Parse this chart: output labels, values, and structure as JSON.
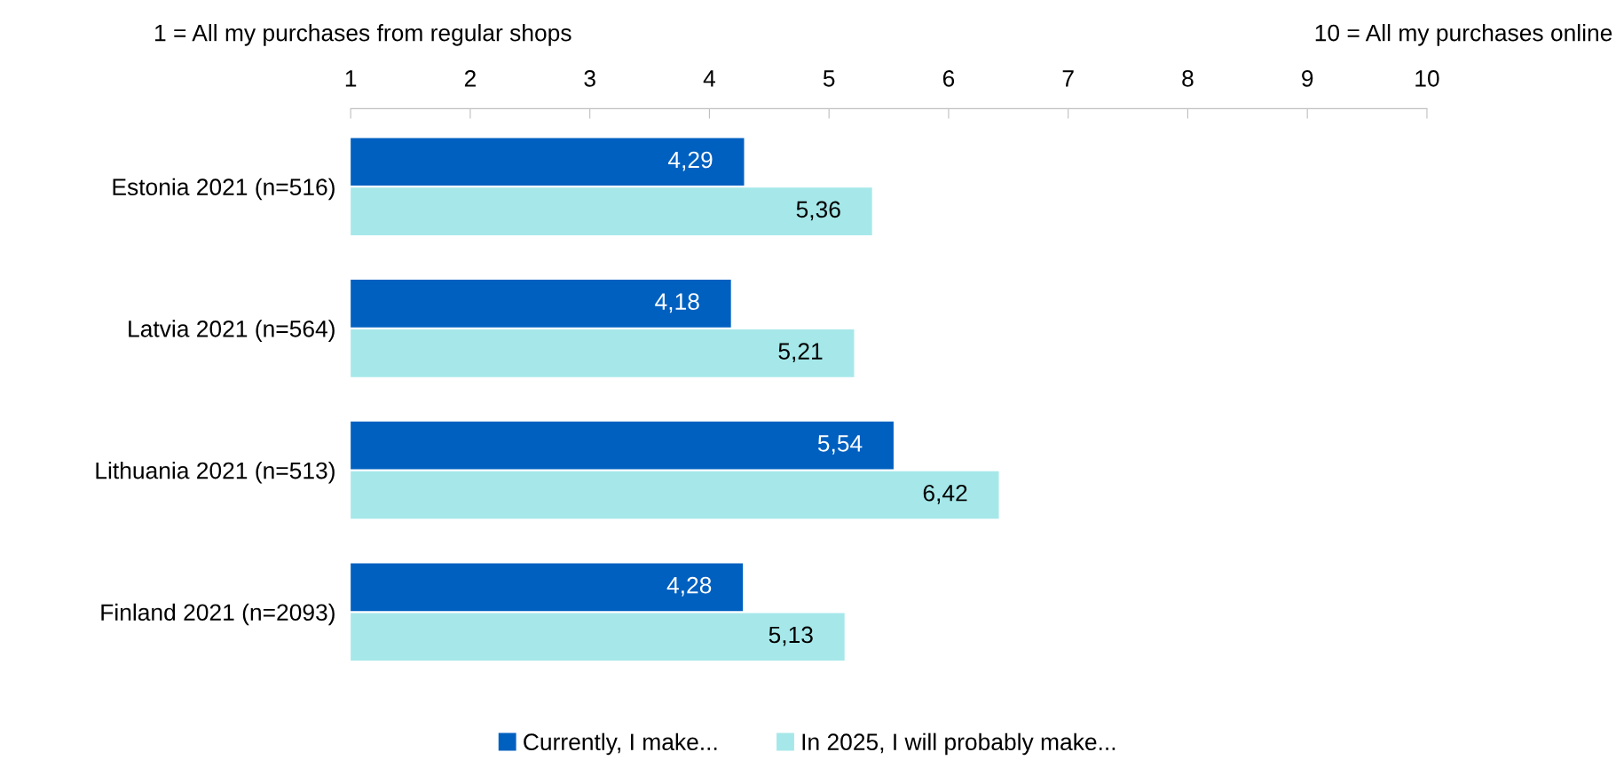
{
  "chart_data": {
    "type": "bar",
    "orientation": "horizontal",
    "categories": [
      "Estonia 2021 (n=516)",
      "Latvia 2021 (n=564)",
      "Lithuania 2021 (n=513)",
      "Finland 2021 (n=2093)"
    ],
    "series": [
      {
        "name": "Currently, I make...",
        "color": "#0060c0",
        "values": [
          4.29,
          4.18,
          5.54,
          4.28
        ],
        "value_labels": [
          "4,29",
          "4,18",
          "5,54",
          "4,28"
        ]
      },
      {
        "name": "In 2025, I will probably make...",
        "color": "#a6e8ea",
        "values": [
          5.36,
          5.21,
          6.42,
          5.13
        ],
        "value_labels": [
          "5,36",
          "5,21",
          "6,42",
          "5,13"
        ]
      }
    ],
    "xlim": [
      1,
      10
    ],
    "xticks": [
      1,
      2,
      3,
      4,
      5,
      6,
      7,
      8,
      9,
      10
    ],
    "annotations": [
      "1 = All my purchases from regular shops",
      "10 = All my purchases online"
    ],
    "legend": "bottom",
    "grid": false
  }
}
